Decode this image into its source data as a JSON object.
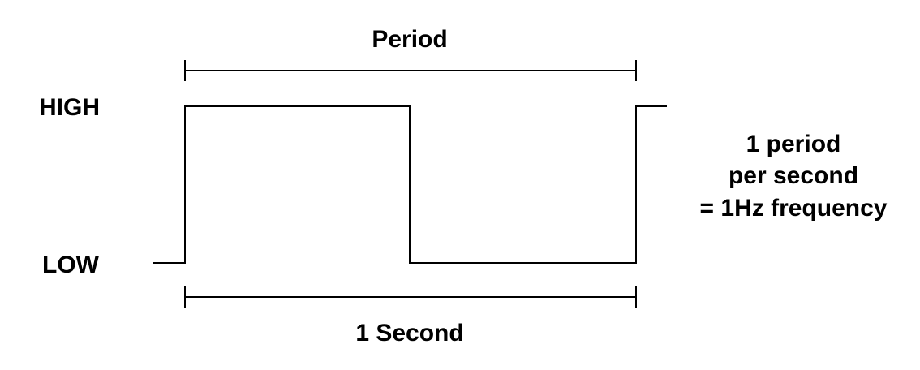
{
  "labels": {
    "period": "Period",
    "one_second": "1 Second",
    "high": "HIGH",
    "low": "LOW"
  },
  "annotation": {
    "line1": "1 period",
    "line2": "per second",
    "line3": "= 1Hz frequency"
  },
  "colors": {
    "stroke": "#000000",
    "background": "#ffffff"
  }
}
